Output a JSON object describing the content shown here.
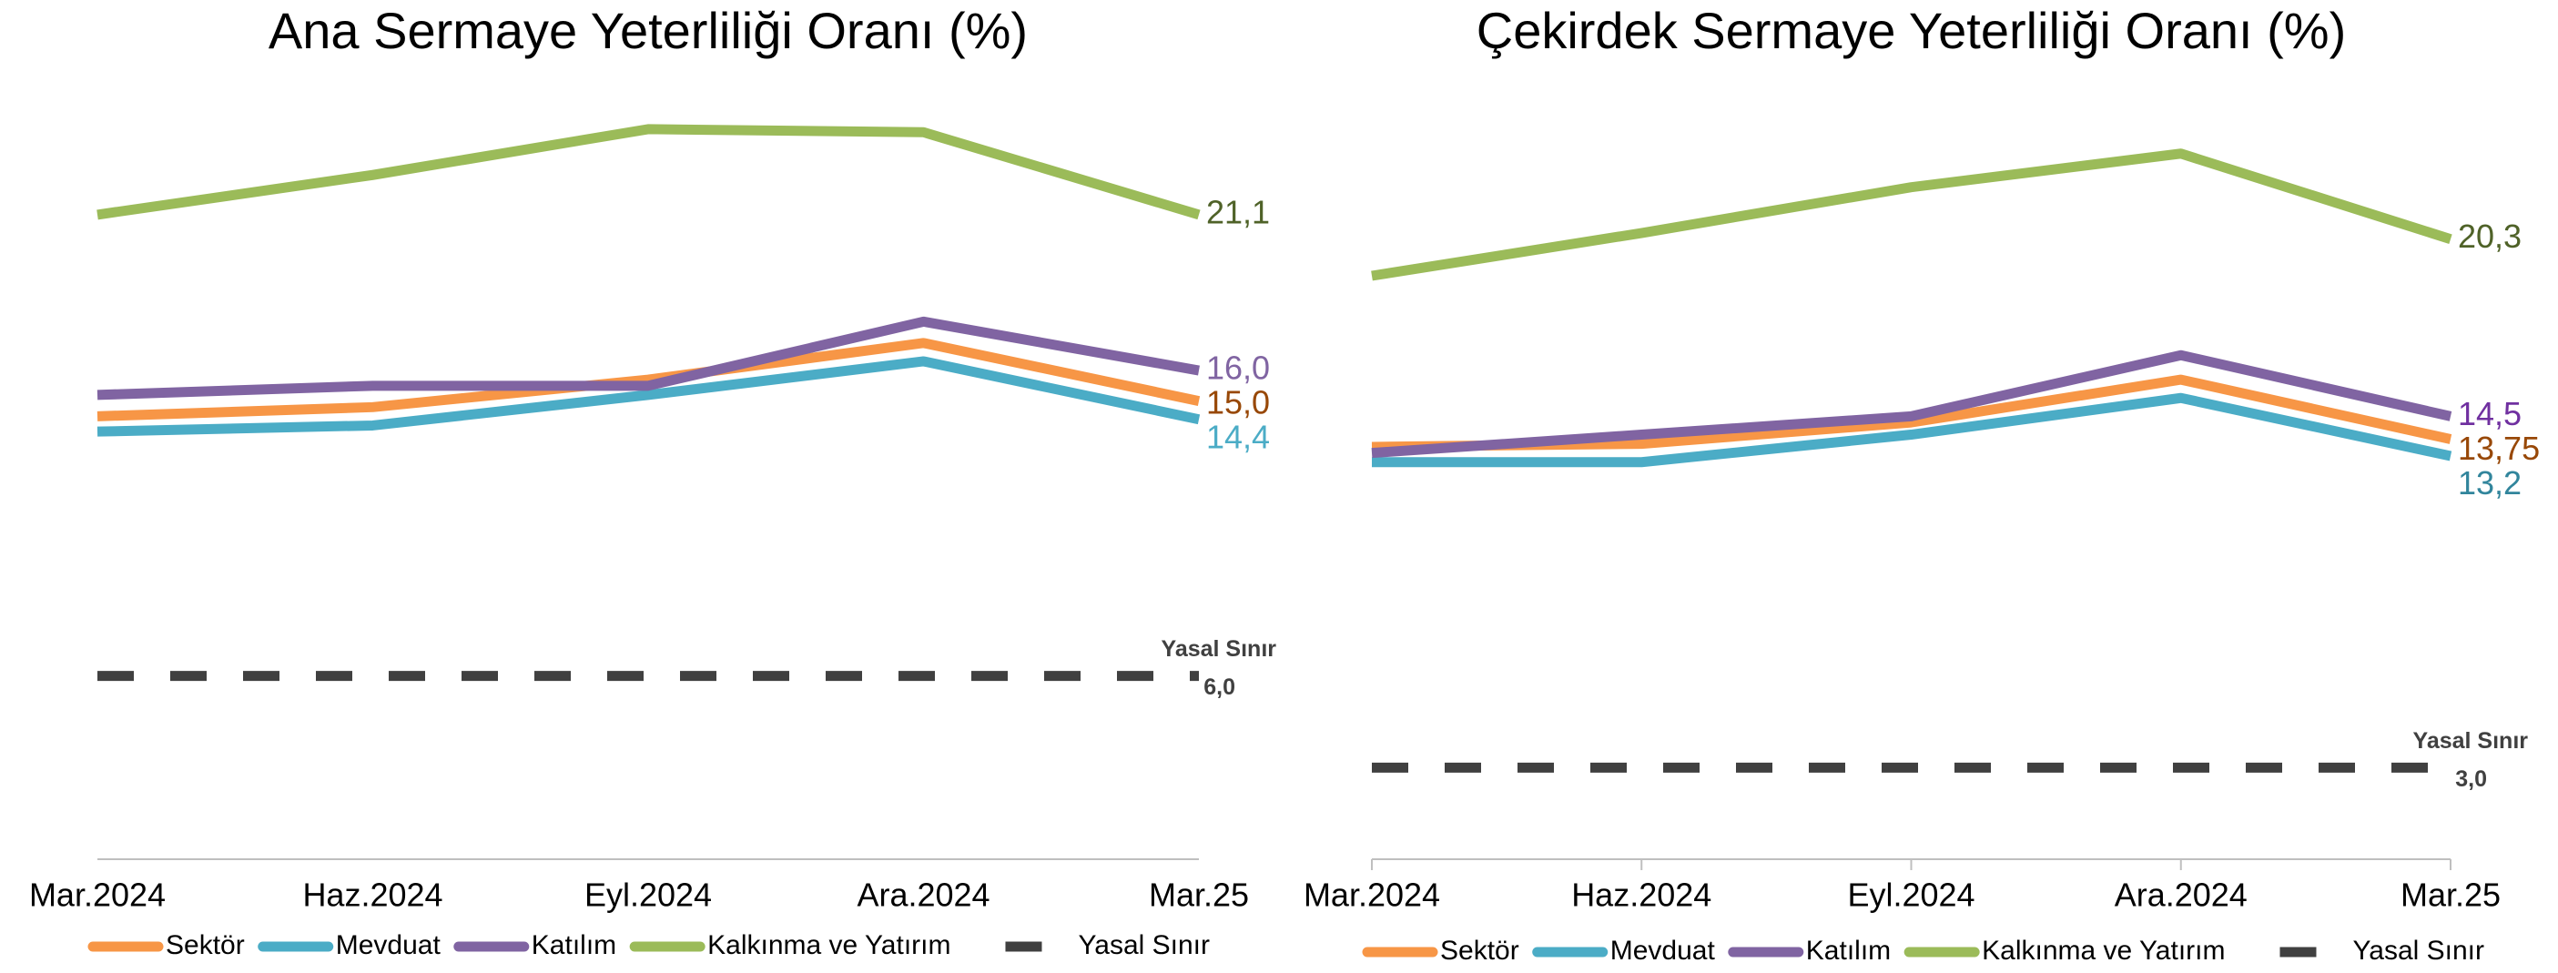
{
  "chart_data": [
    {
      "type": "line",
      "title": "Ana Sermaye Yeterliliği Oranı (%)",
      "categories": [
        "Mar.2024",
        "Haz.2024",
        "Eyl.2024",
        "Ara.2024",
        "Mar.25"
      ],
      "ylim": [
        0,
        25
      ],
      "grid": false,
      "legend": "bottom",
      "series": [
        {
          "name": "Sektör",
          "color": "#f79646",
          "label_color": "#984807",
          "values": [
            14.5,
            14.8,
            15.7,
            16.9,
            15.0
          ],
          "value_labels": [
            null,
            null,
            null,
            null,
            "15,0"
          ]
        },
        {
          "name": "Mevduat",
          "color": "#4bacc6",
          "label_color": "#4bacc6",
          "values": [
            14.0,
            14.2,
            15.2,
            16.3,
            14.4
          ],
          "value_labels": [
            null,
            null,
            null,
            null,
            "14,4"
          ]
        },
        {
          "name": "Katılım",
          "color": "#8064a2",
          "label_color": "#8064a2",
          "values": [
            15.2,
            15.5,
            15.5,
            17.6,
            16.0
          ],
          "value_labels": [
            null,
            null,
            null,
            null,
            "16,0"
          ]
        },
        {
          "name": "Kalkınma ve Yatırım",
          "color": "#9bbb59",
          "label_color": "#4f6228",
          "values": [
            21.1,
            22.4,
            23.9,
            23.8,
            21.1
          ],
          "value_labels": [
            null,
            null,
            null,
            null,
            "21,1"
          ]
        },
        {
          "name": "Yasal Sınır",
          "color": "#404040",
          "label_color": "#404040",
          "dashed": true,
          "values": [
            6.0,
            6.0,
            6.0,
            6.0,
            6.0
          ],
          "value_labels": [
            null,
            null,
            null,
            null,
            "6,0"
          ]
        }
      ]
    },
    {
      "type": "line",
      "title": "Çekirdek Sermaye Yeterliliği Oranı (%)",
      "categories": [
        "Mar.2024",
        "Haz.2024",
        "Eyl.2024",
        "Ara.2024",
        "Mar.25"
      ],
      "ylim": [
        0,
        25
      ],
      "grid": false,
      "legend": "bottom",
      "xtick_marks": true,
      "series": [
        {
          "name": "Sektör",
          "color": "#f79646",
          "label_color": "#984807",
          "values": [
            13.5,
            13.6,
            14.3,
            15.7,
            13.75
          ],
          "value_labels": [
            null,
            null,
            null,
            null,
            "13,75"
          ]
        },
        {
          "name": "Mevduat",
          "color": "#4bacc6",
          "label_color": "#31859c",
          "values": [
            13.0,
            13.0,
            13.9,
            15.1,
            13.2
          ],
          "value_labels": [
            null,
            null,
            null,
            null,
            "13,2"
          ]
        },
        {
          "name": "Katılım",
          "color": "#8064a2",
          "label_color": "#7030a0",
          "values": [
            13.3,
            13.9,
            14.5,
            16.5,
            14.5
          ],
          "value_labels": [
            null,
            null,
            null,
            null,
            "14,5"
          ]
        },
        {
          "name": "Kalkınma ve Yatırım",
          "color": "#9bbb59",
          "label_color": "#4f6228",
          "values": [
            19.1,
            20.5,
            22.0,
            23.1,
            20.3
          ],
          "value_labels": [
            null,
            null,
            null,
            null,
            "20,3"
          ]
        },
        {
          "name": "Yasal Sınır",
          "color": "#404040",
          "label_color": "#404040",
          "dashed": true,
          "values": [
            3.0,
            3.0,
            3.0,
            3.0,
            3.0
          ],
          "value_labels": [
            null,
            null,
            null,
            null,
            "3,0"
          ]
        }
      ]
    }
  ]
}
